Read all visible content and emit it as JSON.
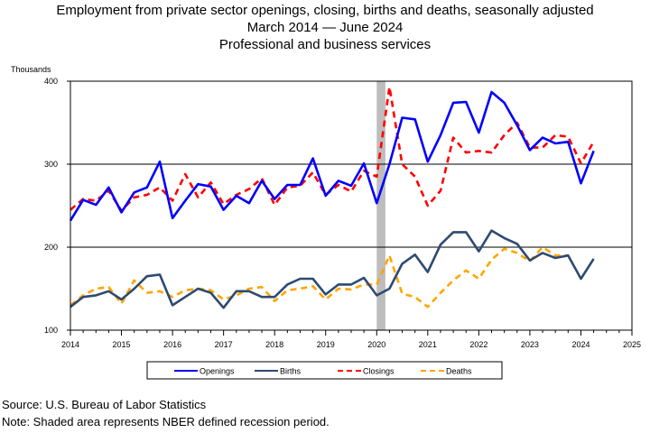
{
  "title": {
    "line1": "Employment from private sector openings, closing, births and deaths, seasonally adjusted",
    "line2": "March 2014 — June 2024",
    "line3": "Professional and business services"
  },
  "footer": {
    "source": "Source: U.S. Bureau of Labor Statistics",
    "note": "Note: Shaded area represents NBER defined recession period."
  },
  "chart_data": {
    "type": "line",
    "ylabel": "Thousands",
    "xlabel": "",
    "ylim": [
      100,
      400
    ],
    "xlim": [
      2014,
      2025
    ],
    "yticks": [
      100,
      200,
      300,
      400
    ],
    "xticks": [
      2014,
      2015,
      2016,
      2017,
      2018,
      2019,
      2020,
      2021,
      2022,
      2023,
      2024,
      2025
    ],
    "grid": "horizontal lines at 200 and 300",
    "legend_position": "bottom",
    "recession_shading": {
      "start": 2020.0,
      "end": 2020.17
    },
    "x": [
      2014.0,
      2014.25,
      2014.5,
      2014.75,
      2015.0,
      2015.25,
      2015.5,
      2015.75,
      2016.0,
      2016.25,
      2016.5,
      2016.75,
      2017.0,
      2017.25,
      2017.5,
      2017.75,
      2018.0,
      2018.25,
      2018.5,
      2018.75,
      2019.0,
      2019.25,
      2019.5,
      2019.75,
      2020.0,
      2020.25,
      2020.5,
      2020.75,
      2021.0,
      2021.25,
      2021.5,
      2021.75,
      2022.0,
      2022.25,
      2022.5,
      2022.75,
      2023.0,
      2023.25,
      2023.5,
      2023.75,
      2024.0,
      2024.25
    ],
    "series": [
      {
        "name": "Openings",
        "color": "#0000ff",
        "style": "solid",
        "values": [
          232,
          257,
          251,
          272,
          242,
          266,
          272,
          303,
          235,
          256,
          276,
          273,
          245,
          262,
          253,
          280,
          258,
          275,
          275,
          307,
          262,
          280,
          274,
          301,
          253,
          300,
          356,
          354,
          303,
          335,
          374,
          375,
          338,
          387,
          374,
          347,
          317,
          332,
          325,
          327,
          277,
          316
        ]
      },
      {
        "name": "Births",
        "color": "#2e4a72",
        "style": "solid",
        "values": [
          128,
          140,
          142,
          147,
          137,
          150,
          165,
          167,
          130,
          140,
          150,
          145,
          127,
          147,
          147,
          140,
          140,
          155,
          162,
          162,
          143,
          155,
          155,
          163,
          142,
          150,
          180,
          191,
          170,
          203,
          218,
          218,
          195,
          220,
          211,
          204,
          184,
          193,
          187,
          190,
          162,
          186
        ]
      },
      {
        "name": "Closings",
        "color": "#ff0000",
        "style": "dashed",
        "values": [
          245,
          258,
          256,
          268,
          244,
          260,
          263,
          272,
          256,
          288,
          260,
          278,
          252,
          263,
          270,
          283,
          251,
          272,
          274,
          290,
          263,
          275,
          267,
          292,
          285,
          393,
          300,
          285,
          250,
          268,
          332,
          314,
          316,
          314,
          335,
          350,
          320,
          320,
          335,
          333,
          301,
          327
        ]
      },
      {
        "name": "Deaths",
        "color": "#ffa500",
        "style": "dashed",
        "values": [
          130,
          142,
          150,
          152,
          132,
          160,
          145,
          147,
          140,
          148,
          150,
          148,
          137,
          142,
          150,
          152,
          135,
          148,
          150,
          153,
          137,
          150,
          149,
          155,
          155,
          190,
          144,
          140,
          128,
          145,
          160,
          172,
          162,
          185,
          198,
          193,
          183,
          200,
          190,
          190,
          null,
          null
        ]
      }
    ]
  }
}
